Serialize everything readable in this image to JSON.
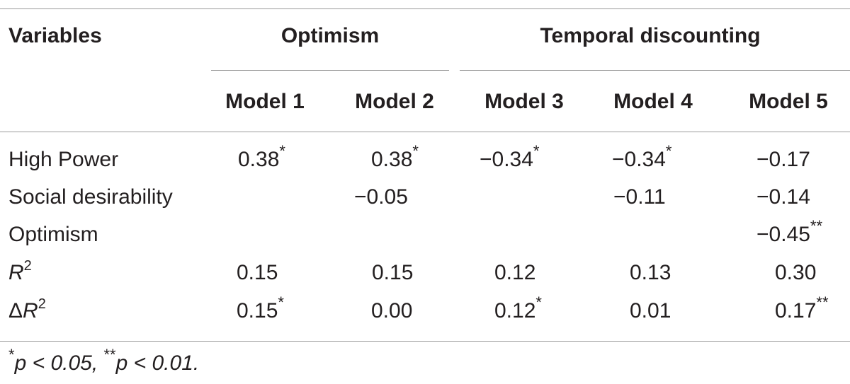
{
  "header": {
    "variables": "Variables",
    "group_optimism": "Optimism",
    "group_temporal": "Temporal discounting",
    "models": [
      "Model 1",
      "Model 2",
      "Model 3",
      "Model 4",
      "Model 5"
    ]
  },
  "rows": [
    {
      "label": "High Power",
      "values": [
        "0.38",
        "0.38",
        "−0.34",
        "−0.34",
        "−0.17"
      ],
      "stars": [
        "*",
        "*",
        "*",
        "*",
        ""
      ]
    },
    {
      "label": "Social desirability",
      "values": [
        "",
        "−0.05",
        "",
        "−0.11",
        "−0.14"
      ],
      "stars": [
        "",
        "",
        "",
        "",
        ""
      ]
    },
    {
      "label": "Optimism",
      "values": [
        "",
        "",
        "",
        "",
        "−0.45"
      ],
      "stars": [
        "",
        "",
        "",
        "",
        "**"
      ]
    },
    {
      "label_base": "R",
      "label_sup": "2",
      "values": [
        "0.15",
        "0.15",
        "0.12",
        "0.13",
        "0.30"
      ],
      "stars": [
        "",
        "",
        "",
        "",
        ""
      ]
    },
    {
      "label_prefix": "Δ",
      "label_base": "R",
      "label_sup": "2",
      "values": [
        "0.15",
        "0.00",
        "0.12",
        "0.01",
        "0.17"
      ],
      "stars": [
        "*",
        "",
        "*",
        "",
        "**"
      ]
    }
  ],
  "footnote": {
    "star1": "*",
    "p1": "p",
    "t1": " < 0.05, ",
    "star2": "**",
    "p2": "p",
    "t2": " < 0.01."
  }
}
